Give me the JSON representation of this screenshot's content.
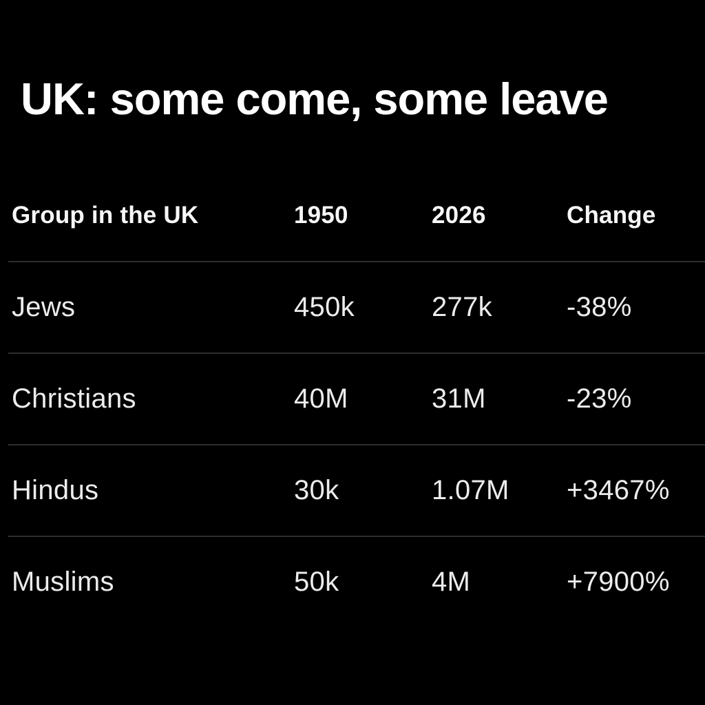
{
  "page": {
    "background_color": "#000000",
    "title_color": "#ffffff",
    "text_color": "#ececec",
    "header_color": "#f7f7f7",
    "divider_color": "#2e2e2e"
  },
  "title": "UK: some come, some leave",
  "table": {
    "header": {
      "group": "Group in the UK",
      "y1950": "1950",
      "y2026": "2026",
      "change": "Change"
    },
    "rows": [
      {
        "group": "Jews",
        "y1950": "450k",
        "y2026": "277k",
        "change": "-38%"
      },
      {
        "group": "Christians",
        "y1950": "40M",
        "y2026": "31M",
        "change": "-23%"
      },
      {
        "group": "Hindus",
        "y1950": "30k",
        "y2026": "1.07M",
        "change": "+3467%"
      },
      {
        "group": "Muslims",
        "y1950": "50k",
        "y2026": "4M",
        "change": "+7900%"
      }
    ]
  },
  "chart_data": {
    "type": "table",
    "title": "UK: some come, some leave",
    "columns": [
      "Group in the UK",
      "1950",
      "2026",
      "Change"
    ],
    "rows": [
      [
        "Jews",
        "450k",
        "277k",
        "-38%"
      ],
      [
        "Christians",
        "40M",
        "31M",
        "-23%"
      ],
      [
        "Hindus",
        "30k",
        "1.07M",
        "+3467%"
      ],
      [
        "Muslims",
        "50k",
        "4M",
        "+7900%"
      ]
    ],
    "numeric": {
      "groups": [
        "Jews",
        "Christians",
        "Hindus",
        "Muslims"
      ],
      "values_1950": [
        450000,
        40000000,
        30000,
        50000
      ],
      "values_2026": [
        277000,
        31000000,
        1070000,
        4000000
      ],
      "change_percent": [
        -38,
        -23,
        3467,
        7900
      ]
    }
  }
}
